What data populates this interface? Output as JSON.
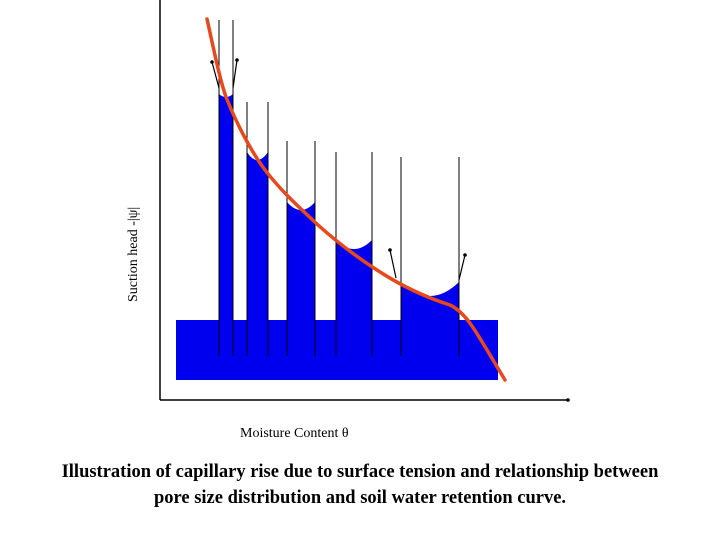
{
  "axes": {
    "y_label": "Suction head -|ψ|",
    "x_label": "Moisture Content θ"
  },
  "caption": {
    "line1": "Illustration of capillary rise due to surface tension and relationship between",
    "line2": "pore size distribution and soil water retention curve."
  },
  "colors": {
    "water": "#0000ee",
    "retention_curve": "#e8481c",
    "axis": "#000000"
  }
}
